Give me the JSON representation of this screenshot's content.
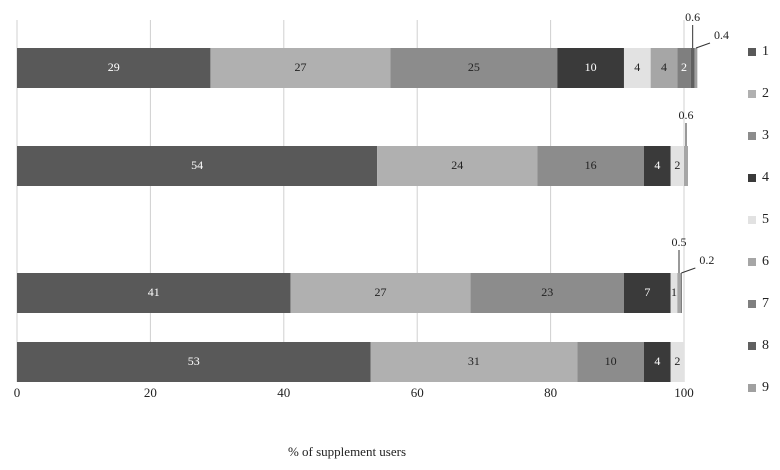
{
  "chart_data": {
    "type": "stacked-barh",
    "x_label": "% of supplement users",
    "categories": [
      null,
      null,
      null,
      null
    ],
    "xlim": [
      0,
      100
    ],
    "xticks": [
      0,
      20,
      40,
      60,
      80,
      100
    ],
    "grid": true,
    "series": [
      {
        "name": "1",
        "color": "#595959",
        "values": [
          29,
          54,
          41,
          53
        ]
      },
      {
        "name": "2",
        "color": "#b0b0b0",
        "values": [
          27,
          24,
          27,
          31
        ]
      },
      {
        "name": "3",
        "color": "#8c8c8c",
        "values": [
          25,
          16,
          23,
          10
        ]
      },
      {
        "name": "4",
        "color": "#3a3a3a",
        "values": [
          10,
          4,
          7,
          4
        ]
      },
      {
        "name": "5",
        "color": "#e2e2e2",
        "values": [
          4,
          2,
          1,
          2
        ]
      },
      {
        "name": "6",
        "color": "#a6a6a6",
        "values": [
          4,
          0.6,
          0.5,
          null
        ]
      },
      {
        "name": "7",
        "color": "#7f7f7f",
        "values": [
          2,
          null,
          0.2,
          null
        ]
      },
      {
        "name": "8",
        "color": "#606060",
        "values": [
          0.6,
          null,
          null,
          null
        ]
      },
      {
        "name": "9",
        "color": "#a0a0a0",
        "values": [
          0.4,
          null,
          null,
          null
        ]
      }
    ]
  }
}
